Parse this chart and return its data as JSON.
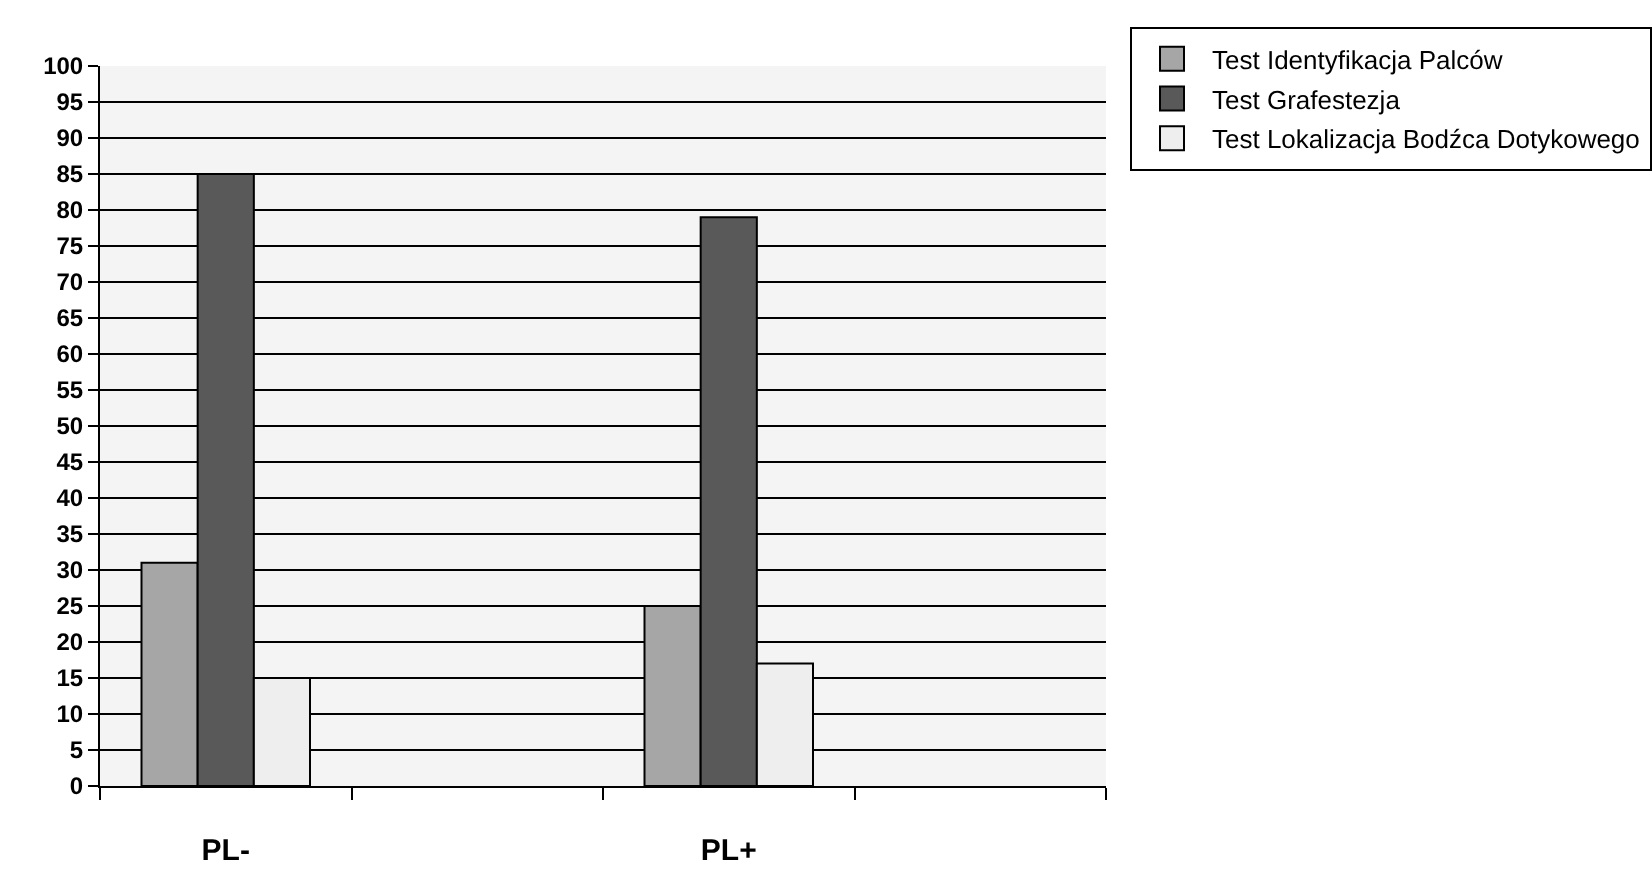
{
  "chart_data": {
    "type": "bar",
    "categories": [
      "PL-",
      null,
      "PL+",
      null
    ],
    "series": [
      {
        "name": "Test Identyfikacja Palców",
        "color": "#a6a6a6",
        "values": [
          31,
          null,
          25,
          null
        ]
      },
      {
        "name": "Test Grafestezja",
        "color": "#595959",
        "values": [
          85,
          null,
          79,
          null
        ]
      },
      {
        "name": "Test Lokalizacja Bodźca Dotykowego",
        "color": "#eeeeee",
        "values": [
          15,
          null,
          17,
          null
        ]
      }
    ],
    "ylim": [
      0,
      100
    ],
    "yticks": [
      0,
      5,
      10,
      15,
      20,
      25,
      30,
      35,
      40,
      45,
      50,
      55,
      60,
      65,
      70,
      75,
      80,
      85,
      90,
      95,
      100
    ],
    "grid": "y",
    "legend": "top right"
  }
}
